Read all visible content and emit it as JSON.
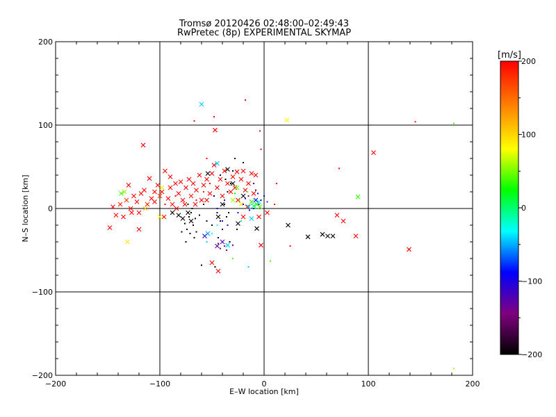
{
  "chart_data": {
    "type": "scatter",
    "title": "Tromsø 20120426 02:48:00–02:49:43",
    "subtitle": "RwPretec (8p) EXPERIMENTAL SKYMAP",
    "xlabel": "E–W location [km]",
    "ylabel": "N–S location [km]",
    "xlim": [
      -200,
      200
    ],
    "ylim": [
      -200,
      200
    ],
    "xticks": [
      -200,
      -100,
      0,
      100,
      200
    ],
    "yticks": [
      -200,
      -100,
      0,
      100,
      200
    ],
    "xtick_labels": [
      "−200",
      "−100",
      "0",
      "100",
      "200"
    ],
    "ytick_labels": [
      "−200",
      "−100",
      "0",
      "100",
      "200"
    ],
    "grid": true,
    "colorbar": {
      "label": "[m/s]",
      "range": [
        -200,
        200
      ],
      "ticks": [
        200,
        100,
        0,
        -100,
        -200
      ],
      "tick_labels": [
        "200",
        "100",
        "0",
        "−100",
        "−200"
      ],
      "colors": [
        "#000000",
        "#800080",
        "#0000ff",
        "#00ffff",
        "#00ff00",
        "#ffff00",
        "#ff8000",
        "#ff0000"
      ]
    },
    "points": [
      {
        "x": -145,
        "y": 2,
        "v": 200,
        "m": "x"
      },
      {
        "x": -148,
        "y": -23,
        "v": 200,
        "m": "x"
      },
      {
        "x": -142,
        "y": -8,
        "v": 195,
        "m": "x"
      },
      {
        "x": -138,
        "y": 5,
        "v": 190,
        "m": "x"
      },
      {
        "x": -135,
        "y": -10,
        "v": 200,
        "m": "x"
      },
      {
        "x": -132,
        "y": 10,
        "v": 180,
        "m": "x"
      },
      {
        "x": -128,
        "y": 0,
        "v": 200,
        "m": "x"
      },
      {
        "x": -125,
        "y": 15,
        "v": 200,
        "m": "x"
      },
      {
        "x": -122,
        "y": 8,
        "v": 200,
        "m": "x"
      },
      {
        "x": -120,
        "y": -5,
        "v": 195,
        "m": "x"
      },
      {
        "x": -118,
        "y": 18,
        "v": 200,
        "m": "x"
      },
      {
        "x": -115,
        "y": 22,
        "v": 200,
        "m": "x"
      },
      {
        "x": -112,
        "y": 5,
        "v": 190,
        "m": "x"
      },
      {
        "x": -110,
        "y": 36,
        "v": 200,
        "m": "x"
      },
      {
        "x": -108,
        "y": 12,
        "v": 200,
        "m": "x"
      },
      {
        "x": -105,
        "y": 20,
        "v": 200,
        "m": "x"
      },
      {
        "x": -102,
        "y": 28,
        "v": 200,
        "m": "x"
      },
      {
        "x": -100,
        "y": 15,
        "v": 180,
        "m": "x"
      },
      {
        "x": -98,
        "y": 20,
        "v": 200,
        "m": "x"
      },
      {
        "x": -95,
        "y": 45,
        "v": 200,
        "m": "x"
      },
      {
        "x": -92,
        "y": 12,
        "v": 200,
        "m": "x"
      },
      {
        "x": -90,
        "y": 25,
        "v": 200,
        "m": "x"
      },
      {
        "x": -88,
        "y": 5,
        "v": 195,
        "m": "x"
      },
      {
        "x": -85,
        "y": 30,
        "v": 200,
        "m": "x"
      },
      {
        "x": -82,
        "y": 18,
        "v": 200,
        "m": "x"
      },
      {
        "x": -80,
        "y": 32,
        "v": 200,
        "m": "x"
      },
      {
        "x": -78,
        "y": 10,
        "v": 200,
        "m": "x"
      },
      {
        "x": -75,
        "y": 25,
        "v": 200,
        "m": "x"
      },
      {
        "x": -72,
        "y": 35,
        "v": 200,
        "m": "x"
      },
      {
        "x": -70,
        "y": 15,
        "v": 190,
        "m": "x"
      },
      {
        "x": -68,
        "y": 30,
        "v": 200,
        "m": "x"
      },
      {
        "x": -65,
        "y": 22,
        "v": 200,
        "m": "x"
      },
      {
        "x": -62,
        "y": 40,
        "v": 200,
        "m": "x"
      },
      {
        "x": -60,
        "y": 10,
        "v": 200,
        "m": "x"
      },
      {
        "x": -58,
        "y": 28,
        "v": 200,
        "m": "x"
      },
      {
        "x": -55,
        "y": 35,
        "v": 200,
        "m": "x"
      },
      {
        "x": -52,
        "y": 18,
        "v": 200,
        "m": "x"
      },
      {
        "x": -50,
        "y": 42,
        "v": 200,
        "m": "x"
      },
      {
        "x": -48,
        "y": 52,
        "v": 200,
        "m": "x"
      },
      {
        "x": -45,
        "y": 25,
        "v": 200,
        "m": "x"
      },
      {
        "x": -42,
        "y": 35,
        "v": 200,
        "m": "x"
      },
      {
        "x": -40,
        "y": 15,
        "v": 200,
        "m": "x"
      },
      {
        "x": -38,
        "y": 45,
        "v": 200,
        "m": "x"
      },
      {
        "x": -35,
        "y": 30,
        "v": 200,
        "m": "x"
      },
      {
        "x": -32,
        "y": 20,
        "v": 200,
        "m": "x"
      },
      {
        "x": -30,
        "y": 38,
        "v": 200,
        "m": "x"
      },
      {
        "x": -28,
        "y": 25,
        "v": 200,
        "m": "x"
      },
      {
        "x": -25,
        "y": 10,
        "v": 200,
        "m": "x"
      },
      {
        "x": -22,
        "y": 35,
        "v": 200,
        "m": "x"
      },
      {
        "x": -20,
        "y": 45,
        "v": 200,
        "m": "x"
      },
      {
        "x": -18,
        "y": 22,
        "v": 200,
        "m": "x"
      },
      {
        "x": -15,
        "y": 30,
        "v": 200,
        "m": "x"
      },
      {
        "x": -12,
        "y": 42,
        "v": 200,
        "m": "x"
      },
      {
        "x": -10,
        "y": 18,
        "v": 200,
        "m": "x"
      },
      {
        "x": -130,
        "y": 28,
        "v": 200,
        "m": "x"
      },
      {
        "x": -127,
        "y": -5,
        "v": 200,
        "m": "x"
      },
      {
        "x": -116,
        "y": 76,
        "v": 200,
        "m": "x"
      },
      {
        "x": -120,
        "y": -25,
        "v": 200,
        "m": "x"
      },
      {
        "x": -105,
        "y": 8,
        "v": 200,
        "m": "x"
      },
      {
        "x": -96,
        "y": -10,
        "v": 200,
        "m": "x"
      },
      {
        "x": -90,
        "y": 38,
        "v": 200,
        "m": "x"
      },
      {
        "x": -84,
        "y": 0,
        "v": 200,
        "m": "x"
      },
      {
        "x": -76,
        "y": 5,
        "v": 200,
        "m": "x"
      },
      {
        "x": -66,
        "y": 5,
        "v": 200,
        "m": "x"
      },
      {
        "x": -55,
        "y": 10,
        "v": 200,
        "m": "x"
      },
      {
        "x": -47,
        "y": 94,
        "v": 200,
        "m": "x"
      },
      {
        "x": -26,
        "y": 44,
        "v": 200,
        "m": "x"
      },
      {
        "x": -8,
        "y": 40,
        "v": 200,
        "m": "x"
      },
      {
        "x": -5,
        "y": -10,
        "v": 200,
        "m": "x"
      },
      {
        "x": -3,
        "y": -44,
        "v": 200,
        "m": "x"
      },
      {
        "x": 3,
        "y": -5,
        "v": 200,
        "m": "x"
      },
      {
        "x": 70,
        "y": -8,
        "v": 200,
        "m": "x"
      },
      {
        "x": 76,
        "y": -15,
        "v": 200,
        "m": "x"
      },
      {
        "x": 88,
        "y": -33,
        "v": 200,
        "m": "x"
      },
      {
        "x": 105,
        "y": 67,
        "v": 200,
        "m": "x"
      },
      {
        "x": 139,
        "y": -49,
        "v": 200,
        "m": "x"
      },
      {
        "x": -44,
        "y": -75,
        "v": 200,
        "m": "x"
      },
      {
        "x": -50,
        "y": -65,
        "v": 200,
        "m": "x"
      },
      {
        "x": -16,
        "y": 2,
        "v": 200,
        "m": "x"
      },
      {
        "x": -20,
        "y": -10,
        "v": 200,
        "m": "x"
      },
      {
        "x": -134,
        "y": 20,
        "v": 60,
        "m": "x"
      },
      {
        "x": -137,
        "y": 18,
        "v": 20,
        "m": "x"
      },
      {
        "x": -131,
        "y": -40,
        "v": 110,
        "m": "x"
      },
      {
        "x": -114,
        "y": 0,
        "v": 120,
        "m": "x"
      },
      {
        "x": -100,
        "y": -10,
        "v": 100,
        "m": "x"
      },
      {
        "x": -98,
        "y": 25,
        "v": 110,
        "m": "x"
      },
      {
        "x": -57,
        "y": -33,
        "v": -120,
        "m": "x"
      },
      {
        "x": -60,
        "y": 125,
        "v": -60,
        "m": "x"
      },
      {
        "x": -54,
        "y": -30,
        "v": -70,
        "m": "x"
      },
      {
        "x": -45,
        "y": 54,
        "v": -60,
        "m": "x"
      },
      {
        "x": -35,
        "y": -44,
        "v": -60,
        "m": "x"
      },
      {
        "x": -30,
        "y": 10,
        "v": 60,
        "m": "x"
      },
      {
        "x": -26,
        "y": 25,
        "v": 40,
        "m": "x"
      },
      {
        "x": -22,
        "y": 5,
        "v": 110,
        "m": "x"
      },
      {
        "x": -15,
        "y": 2,
        "v": -60,
        "m": "x"
      },
      {
        "x": -12,
        "y": 8,
        "v": 10,
        "m": "x"
      },
      {
        "x": -10,
        "y": 3,
        "v": -20,
        "m": "x"
      },
      {
        "x": -8,
        "y": 10,
        "v": -100,
        "m": "x"
      },
      {
        "x": -7,
        "y": 5,
        "v": 0,
        "m": "x"
      },
      {
        "x": -5,
        "y": 8,
        "v": -40,
        "m": "x"
      },
      {
        "x": -4,
        "y": 2,
        "v": 30,
        "m": "x"
      },
      {
        "x": -12,
        "y": -12,
        "v": -60,
        "m": "x"
      },
      {
        "x": 22,
        "y": 106,
        "v": 100,
        "m": "x"
      },
      {
        "x": 90,
        "y": 14,
        "v": 20,
        "m": "x"
      },
      {
        "x": -40,
        "y": -40,
        "v": -130,
        "m": "x"
      },
      {
        "x": -45,
        "y": -45,
        "v": -140,
        "m": "x"
      },
      {
        "x": -73,
        "y": -5,
        "v": -200,
        "m": "x"
      },
      {
        "x": -78,
        "y": -12,
        "v": -200,
        "m": "x"
      },
      {
        "x": -70,
        "y": -15,
        "v": -200,
        "m": "x"
      },
      {
        "x": -82,
        "y": -8,
        "v": -200,
        "m": "x"
      },
      {
        "x": -88,
        "y": -5,
        "v": -200,
        "m": "x"
      },
      {
        "x": -54,
        "y": 42,
        "v": -200,
        "m": "x"
      },
      {
        "x": -35,
        "y": 47,
        "v": -200,
        "m": "x"
      },
      {
        "x": -40,
        "y": 5,
        "v": -200,
        "m": "x"
      },
      {
        "x": -44,
        "y": -10,
        "v": -200,
        "m": "x"
      },
      {
        "x": -25,
        "y": -18,
        "v": -200,
        "m": "x"
      },
      {
        "x": -7,
        "y": -24,
        "v": -200,
        "m": "x"
      },
      {
        "x": 23,
        "y": -20,
        "v": -200,
        "m": "x"
      },
      {
        "x": 42,
        "y": -34,
        "v": -200,
        "m": "x"
      },
      {
        "x": 56,
        "y": -31,
        "v": -200,
        "m": "x"
      },
      {
        "x": 61,
        "y": -33,
        "v": -200,
        "m": "x"
      },
      {
        "x": 66,
        "y": -33,
        "v": -200,
        "m": "x"
      },
      {
        "x": -30,
        "y": 30,
        "v": -200,
        "m": "x"
      },
      {
        "x": -20,
        "y": 15,
        "v": -200,
        "m": "x"
      },
      {
        "x": -70,
        "y": -5,
        "v": -200,
        "m": "d"
      },
      {
        "x": -72,
        "y": -10,
        "v": -200,
        "m": "d"
      },
      {
        "x": -68,
        "y": -20,
        "v": -200,
        "m": "d"
      },
      {
        "x": -74,
        "y": -25,
        "v": -200,
        "m": "d"
      },
      {
        "x": -66,
        "y": -12,
        "v": -200,
        "m": "d"
      },
      {
        "x": -76,
        "y": -18,
        "v": -200,
        "m": "d"
      },
      {
        "x": -71,
        "y": -30,
        "v": -200,
        "m": "d"
      },
      {
        "x": -69,
        "y": 0,
        "v": -200,
        "m": "d"
      },
      {
        "x": -73,
        "y": 5,
        "v": -200,
        "m": "d"
      },
      {
        "x": -67,
        "y": -35,
        "v": -200,
        "m": "d"
      },
      {
        "x": -75,
        "y": -40,
        "v": -200,
        "m": "d"
      },
      {
        "x": -65,
        "y": -28,
        "v": -200,
        "m": "d"
      },
      {
        "x": -62,
        "y": -8,
        "v": -200,
        "m": "d"
      },
      {
        "x": -79,
        "y": -28,
        "v": -200,
        "m": "d"
      },
      {
        "x": -45,
        "y": -5,
        "v": -200,
        "m": "d"
      },
      {
        "x": -42,
        "y": -15,
        "v": -200,
        "m": "d"
      },
      {
        "x": -40,
        "y": -25,
        "v": -200,
        "m": "d"
      },
      {
        "x": -44,
        "y": -35,
        "v": -200,
        "m": "d"
      },
      {
        "x": -38,
        "y": 5,
        "v": -200,
        "m": "d"
      },
      {
        "x": -36,
        "y": -10,
        "v": -200,
        "m": "d"
      },
      {
        "x": -35,
        "y": 20,
        "v": -200,
        "m": "d"
      },
      {
        "x": -32,
        "y": 30,
        "v": -200,
        "m": "d"
      },
      {
        "x": -48,
        "y": 15,
        "v": -200,
        "m": "d"
      },
      {
        "x": -50,
        "y": -20,
        "v": -200,
        "m": "d"
      },
      {
        "x": -30,
        "y": 45,
        "v": -200,
        "m": "d"
      },
      {
        "x": -28,
        "y": 60,
        "v": -200,
        "m": "d"
      },
      {
        "x": -33,
        "y": -40,
        "v": -200,
        "m": "d"
      },
      {
        "x": -55,
        "y": -15,
        "v": -200,
        "m": "d"
      },
      {
        "x": -58,
        "y": 5,
        "v": -200,
        "m": "d"
      },
      {
        "x": -37,
        "y": 35,
        "v": -200,
        "m": "d"
      },
      {
        "x": -60,
        "y": -68,
        "v": -200,
        "m": "d"
      },
      {
        "x": -47,
        "y": -70,
        "v": -200,
        "m": "d"
      },
      {
        "x": -34,
        "y": -5,
        "v": -200,
        "m": "d"
      },
      {
        "x": -26,
        "y": -25,
        "v": -200,
        "m": "d"
      },
      {
        "x": -42,
        "y": 40,
        "v": -200,
        "m": "d"
      },
      {
        "x": -20,
        "y": 55,
        "v": -200,
        "m": "d"
      },
      {
        "x": -10,
        "y": 30,
        "v": -160,
        "m": "d"
      },
      {
        "x": -8,
        "y": 22,
        "v": -170,
        "m": "d"
      },
      {
        "x": -15,
        "y": 15,
        "v": -150,
        "m": "d"
      },
      {
        "x": -42,
        "y": -48,
        "v": -150,
        "m": "d"
      },
      {
        "x": -38,
        "y": -45,
        "v": -150,
        "m": "d"
      },
      {
        "x": -44,
        "y": -42,
        "v": -160,
        "m": "d"
      },
      {
        "x": -36,
        "y": -50,
        "v": -140,
        "m": "d"
      },
      {
        "x": -30,
        "y": -44,
        "v": -130,
        "m": "d"
      },
      {
        "x": -40,
        "y": -15,
        "v": -110,
        "m": "d"
      },
      {
        "x": -35,
        "y": -20,
        "v": -100,
        "m": "d"
      },
      {
        "x": -45,
        "y": 0,
        "v": -100,
        "m": "d"
      },
      {
        "x": -38,
        "y": 10,
        "v": -110,
        "m": "d"
      },
      {
        "x": -25,
        "y": -5,
        "v": -100,
        "m": "d"
      },
      {
        "x": -20,
        "y": 5,
        "v": -100,
        "m": "d"
      },
      {
        "x": -14,
        "y": -2,
        "v": -100,
        "m": "d"
      },
      {
        "x": -10,
        "y": 0,
        "v": -100,
        "m": "d"
      },
      {
        "x": -5,
        "y": 5,
        "v": -100,
        "m": "d"
      },
      {
        "x": -3,
        "y": 10,
        "v": -100,
        "m": "d"
      },
      {
        "x": 0,
        "y": 15,
        "v": -100,
        "m": "d"
      },
      {
        "x": -18,
        "y": 12,
        "v": -120,
        "m": "d"
      },
      {
        "x": -6,
        "y": 18,
        "v": -110,
        "m": "d"
      },
      {
        "x": 3,
        "y": 8,
        "v": -90,
        "m": "d"
      },
      {
        "x": -12,
        "y": 5,
        "v": -40,
        "m": "d"
      },
      {
        "x": -8,
        "y": 0,
        "v": -20,
        "m": "d"
      },
      {
        "x": -22,
        "y": -15,
        "v": -30,
        "m": "d"
      },
      {
        "x": -28,
        "y": 18,
        "v": 0,
        "m": "d"
      },
      {
        "x": -24,
        "y": 10,
        "v": 20,
        "m": "d"
      },
      {
        "x": -16,
        "y": 20,
        "v": 40,
        "m": "d"
      },
      {
        "x": -55,
        "y": -40,
        "v": -60,
        "m": "d"
      },
      {
        "x": -50,
        "y": -30,
        "v": -50,
        "m": "d"
      },
      {
        "x": -45,
        "y": -20,
        "v": -40,
        "m": "d"
      },
      {
        "x": -15,
        "y": -70,
        "v": -60,
        "m": "d"
      },
      {
        "x": 6,
        "y": -63,
        "v": 20,
        "m": "d"
      },
      {
        "x": -30,
        "y": -60,
        "v": 40,
        "m": "d"
      },
      {
        "x": -65,
        "y": 10,
        "v": 200,
        "m": "d"
      },
      {
        "x": -58,
        "y": 20,
        "v": 200,
        "m": "d"
      },
      {
        "x": -52,
        "y": 30,
        "v": 200,
        "m": "d"
      },
      {
        "x": -85,
        "y": 15,
        "v": 200,
        "m": "d"
      },
      {
        "x": -95,
        "y": 5,
        "v": 200,
        "m": "d"
      },
      {
        "x": -48,
        "y": 110,
        "v": 200,
        "m": "d"
      },
      {
        "x": -18,
        "y": 130,
        "v": 200,
        "m": "d"
      },
      {
        "x": -4,
        "y": 93,
        "v": 200,
        "m": "d"
      },
      {
        "x": -3,
        "y": 71,
        "v": 200,
        "m": "d"
      },
      {
        "x": 72,
        "y": 48,
        "v": 200,
        "m": "d"
      },
      {
        "x": 145,
        "y": 104,
        "v": 200,
        "m": "d"
      },
      {
        "x": 25,
        "y": -45,
        "v": 200,
        "m": "d"
      },
      {
        "x": 12,
        "y": 30,
        "v": 200,
        "m": "d"
      },
      {
        "x": 10,
        "y": 5,
        "v": 200,
        "m": "d"
      },
      {
        "x": -67,
        "y": 105,
        "v": 200,
        "m": "d"
      },
      {
        "x": -55,
        "y": 60,
        "v": 200,
        "m": "d"
      },
      {
        "x": 182,
        "y": 102,
        "v": 20,
        "m": "d"
      },
      {
        "x": 182,
        "y": -192,
        "v": 60,
        "m": "d"
      }
    ]
  }
}
